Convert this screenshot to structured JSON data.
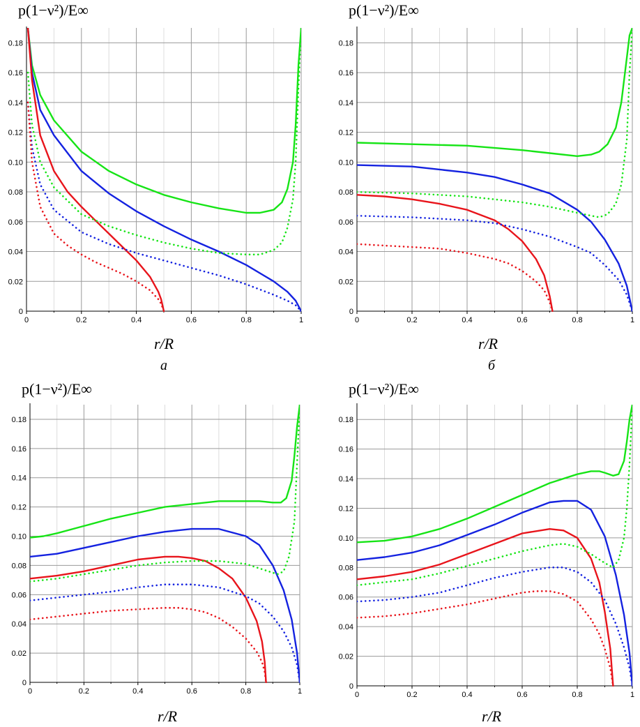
{
  "colors": {
    "red": "#e8141b",
    "blue": "#1422e0",
    "green": "#16e416"
  },
  "chart_data": [
    {
      "type": "line",
      "panel_label": "а",
      "ylabel": "p(1−ν²)/E∞",
      "xlabel": "r/R",
      "xlim": [
        0,
        1
      ],
      "ylim": [
        0,
        0.19
      ],
      "x_ticks": [
        "0",
        "0.2",
        "0.4",
        "0.6",
        "0.8",
        "1"
      ],
      "y_ticks": [
        "0",
        "0.02",
        "0.04",
        "0.06",
        "0.08",
        "0.10",
        "0.12",
        "0.14",
        "0.16",
        "0.18"
      ],
      "grid": true,
      "series": [
        {
          "color": "green",
          "style": "solid",
          "x": [
            0.005,
            0.02,
            0.05,
            0.1,
            0.2,
            0.3,
            0.4,
            0.5,
            0.6,
            0.7,
            0.8,
            0.85,
            0.9,
            0.93,
            0.95,
            0.97,
            0.98,
            0.99,
            1.0
          ],
          "y": [
            0.19,
            0.165,
            0.145,
            0.128,
            0.107,
            0.094,
            0.085,
            0.078,
            0.073,
            0.069,
            0.066,
            0.066,
            0.068,
            0.073,
            0.082,
            0.1,
            0.125,
            0.165,
            0.19
          ]
        },
        {
          "color": "blue",
          "style": "solid",
          "x": [
            0.005,
            0.02,
            0.05,
            0.1,
            0.2,
            0.3,
            0.4,
            0.5,
            0.6,
            0.7,
            0.8,
            0.9,
            0.95,
            0.98,
            1.0
          ],
          "y": [
            0.19,
            0.16,
            0.135,
            0.118,
            0.094,
            0.079,
            0.067,
            0.057,
            0.048,
            0.04,
            0.031,
            0.02,
            0.013,
            0.007,
            0.0
          ]
        },
        {
          "color": "red",
          "style": "solid",
          "x": [
            0.005,
            0.02,
            0.05,
            0.1,
            0.15,
            0.2,
            0.25,
            0.3,
            0.35,
            0.4,
            0.45,
            0.48,
            0.49,
            0.5
          ],
          "y": [
            0.19,
            0.155,
            0.118,
            0.094,
            0.08,
            0.07,
            0.061,
            0.052,
            0.043,
            0.034,
            0.023,
            0.013,
            0.008,
            0.0
          ]
        },
        {
          "color": "green",
          "style": "dotted",
          "x": [
            0.005,
            0.02,
            0.05,
            0.1,
            0.2,
            0.3,
            0.4,
            0.5,
            0.6,
            0.7,
            0.8,
            0.85,
            0.9,
            0.93,
            0.95,
            0.97,
            0.98,
            0.99,
            1.0
          ],
          "y": [
            0.16,
            0.125,
            0.1,
            0.083,
            0.065,
            0.057,
            0.051,
            0.046,
            0.042,
            0.039,
            0.038,
            0.038,
            0.041,
            0.046,
            0.056,
            0.075,
            0.1,
            0.15,
            0.19
          ]
        },
        {
          "color": "blue",
          "style": "dotted",
          "x": [
            0.005,
            0.02,
            0.05,
            0.1,
            0.2,
            0.3,
            0.4,
            0.5,
            0.6,
            0.7,
            0.8,
            0.9,
            0.95,
            0.98,
            1.0
          ],
          "y": [
            0.14,
            0.11,
            0.085,
            0.068,
            0.053,
            0.045,
            0.039,
            0.034,
            0.029,
            0.024,
            0.018,
            0.011,
            0.007,
            0.004,
            0.0
          ]
        },
        {
          "color": "red",
          "style": "dotted",
          "x": [
            0.005,
            0.02,
            0.05,
            0.1,
            0.15,
            0.2,
            0.25,
            0.3,
            0.35,
            0.4,
            0.45,
            0.48,
            0.49,
            0.5
          ],
          "y": [
            0.14,
            0.1,
            0.07,
            0.052,
            0.044,
            0.038,
            0.033,
            0.029,
            0.025,
            0.02,
            0.014,
            0.008,
            0.005,
            0.0
          ]
        }
      ]
    },
    {
      "type": "line",
      "panel_label": "б",
      "ylabel": "p(1−ν²)/E∞",
      "xlabel": "r/R",
      "xlim": [
        0,
        1
      ],
      "ylim": [
        0,
        0.19
      ],
      "x_ticks": [
        "0",
        "0.2",
        "0.4",
        "0.6",
        "0.8",
        "1"
      ],
      "y_ticks": [
        "0",
        "0.02",
        "0.04",
        "0.06",
        "0.08",
        "0.10",
        "0.12",
        "0.14",
        "0.16",
        "0.18"
      ],
      "grid": true,
      "series": [
        {
          "color": "green",
          "style": "solid",
          "x": [
            0,
            0.2,
            0.4,
            0.6,
            0.7,
            0.8,
            0.85,
            0.88,
            0.91,
            0.94,
            0.96,
            0.98,
            0.99,
            1.0
          ],
          "y": [
            0.113,
            0.112,
            0.111,
            0.108,
            0.106,
            0.104,
            0.105,
            0.107,
            0.112,
            0.123,
            0.14,
            0.17,
            0.185,
            0.19
          ]
        },
        {
          "color": "blue",
          "style": "solid",
          "x": [
            0,
            0.2,
            0.4,
            0.5,
            0.6,
            0.7,
            0.8,
            0.85,
            0.9,
            0.95,
            0.98,
            1.0
          ],
          "y": [
            0.098,
            0.097,
            0.093,
            0.09,
            0.085,
            0.079,
            0.068,
            0.06,
            0.048,
            0.032,
            0.017,
            0.0
          ]
        },
        {
          "color": "red",
          "style": "solid",
          "x": [
            0,
            0.1,
            0.2,
            0.3,
            0.4,
            0.5,
            0.55,
            0.6,
            0.65,
            0.68,
            0.7,
            0.71
          ],
          "y": [
            0.078,
            0.077,
            0.075,
            0.072,
            0.068,
            0.061,
            0.055,
            0.047,
            0.035,
            0.024,
            0.01,
            0.0
          ]
        },
        {
          "color": "green",
          "style": "dotted",
          "x": [
            0,
            0.2,
            0.4,
            0.6,
            0.7,
            0.8,
            0.85,
            0.88,
            0.91,
            0.94,
            0.96,
            0.98,
            0.99,
            1.0
          ],
          "y": [
            0.08,
            0.079,
            0.077,
            0.073,
            0.07,
            0.066,
            0.064,
            0.063,
            0.065,
            0.072,
            0.085,
            0.115,
            0.16,
            0.19
          ]
        },
        {
          "color": "blue",
          "style": "dotted",
          "x": [
            0,
            0.2,
            0.4,
            0.5,
            0.6,
            0.7,
            0.8,
            0.85,
            0.9,
            0.95,
            0.98,
            1.0
          ],
          "y": [
            0.064,
            0.063,
            0.061,
            0.059,
            0.055,
            0.05,
            0.043,
            0.039,
            0.031,
            0.021,
            0.011,
            0.0
          ]
        },
        {
          "color": "red",
          "style": "dotted",
          "x": [
            0,
            0.1,
            0.2,
            0.3,
            0.4,
            0.5,
            0.55,
            0.6,
            0.65,
            0.68,
            0.7,
            0.71
          ],
          "y": [
            0.045,
            0.044,
            0.043,
            0.042,
            0.039,
            0.035,
            0.032,
            0.027,
            0.02,
            0.014,
            0.006,
            0.0
          ]
        }
      ]
    },
    {
      "type": "line",
      "panel_label": "",
      "ylabel": "p(1−ν²)/E∞",
      "xlabel": "r/R",
      "xlim": [
        0,
        1
      ],
      "ylim": [
        0,
        0.19
      ],
      "x_ticks": [
        "0",
        "0.2",
        "0.4",
        "0.6",
        "0.8",
        "1"
      ],
      "y_ticks": [
        "0",
        "0.02",
        "0.04",
        "0.06",
        "0.08",
        "0.10",
        "0.12",
        "0.14",
        "0.16",
        "0.18"
      ],
      "grid": true,
      "series": [
        {
          "color": "green",
          "style": "solid",
          "x": [
            0,
            0.05,
            0.1,
            0.2,
            0.3,
            0.4,
            0.5,
            0.6,
            0.7,
            0.8,
            0.85,
            0.9,
            0.93,
            0.95,
            0.97,
            0.98,
            0.99,
            1.0
          ],
          "y": [
            0.099,
            0.1,
            0.102,
            0.107,
            0.112,
            0.116,
            0.12,
            0.122,
            0.124,
            0.124,
            0.124,
            0.123,
            0.123,
            0.126,
            0.138,
            0.155,
            0.175,
            0.19
          ]
        },
        {
          "color": "blue",
          "style": "solid",
          "x": [
            0,
            0.1,
            0.2,
            0.3,
            0.4,
            0.5,
            0.6,
            0.7,
            0.8,
            0.85,
            0.9,
            0.94,
            0.97,
            0.99,
            1.0
          ],
          "y": [
            0.086,
            0.088,
            0.092,
            0.096,
            0.1,
            0.103,
            0.105,
            0.105,
            0.1,
            0.094,
            0.08,
            0.063,
            0.043,
            0.02,
            0.0
          ]
        },
        {
          "color": "red",
          "style": "solid",
          "x": [
            0,
            0.1,
            0.2,
            0.3,
            0.4,
            0.5,
            0.55,
            0.6,
            0.65,
            0.7,
            0.75,
            0.8,
            0.84,
            0.86,
            0.87,
            0.875
          ],
          "y": [
            0.071,
            0.073,
            0.076,
            0.08,
            0.084,
            0.086,
            0.086,
            0.085,
            0.083,
            0.078,
            0.071,
            0.058,
            0.042,
            0.028,
            0.014,
            0.0
          ]
        },
        {
          "color": "green",
          "style": "dotted",
          "x": [
            0,
            0.1,
            0.2,
            0.3,
            0.4,
            0.5,
            0.6,
            0.7,
            0.8,
            0.85,
            0.9,
            0.92,
            0.94,
            0.96,
            0.98,
            0.99,
            1.0
          ],
          "y": [
            0.069,
            0.071,
            0.074,
            0.077,
            0.08,
            0.082,
            0.083,
            0.083,
            0.081,
            0.078,
            0.075,
            0.074,
            0.076,
            0.086,
            0.11,
            0.15,
            0.19
          ]
        },
        {
          "color": "blue",
          "style": "dotted",
          "x": [
            0,
            0.1,
            0.2,
            0.3,
            0.4,
            0.5,
            0.6,
            0.7,
            0.8,
            0.85,
            0.9,
            0.94,
            0.97,
            0.99,
            1.0
          ],
          "y": [
            0.056,
            0.058,
            0.06,
            0.062,
            0.065,
            0.067,
            0.067,
            0.065,
            0.059,
            0.054,
            0.045,
            0.035,
            0.024,
            0.012,
            0.0
          ]
        },
        {
          "color": "red",
          "style": "dotted",
          "x": [
            0,
            0.1,
            0.2,
            0.3,
            0.4,
            0.5,
            0.55,
            0.6,
            0.65,
            0.7,
            0.75,
            0.8,
            0.84,
            0.86,
            0.87,
            0.875
          ],
          "y": [
            0.043,
            0.045,
            0.047,
            0.049,
            0.05,
            0.051,
            0.051,
            0.05,
            0.048,
            0.044,
            0.038,
            0.03,
            0.021,
            0.014,
            0.007,
            0.0
          ]
        }
      ]
    },
    {
      "type": "line",
      "panel_label": "",
      "ylabel": "p(1−ν²)/E∞",
      "xlabel": "r/R",
      "xlim": [
        0,
        1
      ],
      "ylim": [
        0,
        0.19
      ],
      "x_ticks": [
        "0",
        "0.2",
        "0.4",
        "0.6",
        "0.8",
        "1"
      ],
      "y_ticks": [
        "0",
        "0.02",
        "0.04",
        "0.06",
        "0.08",
        "0.10",
        "0.12",
        "0.14",
        "0.16",
        "0.18"
      ],
      "grid": true,
      "series": [
        {
          "color": "green",
          "style": "solid",
          "x": [
            0,
            0.1,
            0.2,
            0.3,
            0.4,
            0.5,
            0.6,
            0.7,
            0.8,
            0.85,
            0.88,
            0.9,
            0.93,
            0.95,
            0.97,
            0.98,
            0.99,
            1.0
          ],
          "y": [
            0.097,
            0.098,
            0.101,
            0.106,
            0.113,
            0.121,
            0.129,
            0.137,
            0.143,
            0.145,
            0.145,
            0.144,
            0.142,
            0.143,
            0.152,
            0.165,
            0.18,
            0.19
          ]
        },
        {
          "color": "blue",
          "style": "solid",
          "x": [
            0,
            0.1,
            0.2,
            0.3,
            0.4,
            0.5,
            0.6,
            0.7,
            0.75,
            0.8,
            0.85,
            0.9,
            0.94,
            0.97,
            0.99,
            1.0
          ],
          "y": [
            0.085,
            0.087,
            0.09,
            0.095,
            0.102,
            0.109,
            0.117,
            0.124,
            0.125,
            0.125,
            0.119,
            0.101,
            0.075,
            0.048,
            0.022,
            0.0
          ]
        },
        {
          "color": "red",
          "style": "solid",
          "x": [
            0,
            0.1,
            0.2,
            0.3,
            0.4,
            0.5,
            0.6,
            0.7,
            0.75,
            0.8,
            0.85,
            0.88,
            0.9,
            0.92,
            0.93
          ],
          "y": [
            0.072,
            0.074,
            0.077,
            0.082,
            0.089,
            0.096,
            0.103,
            0.106,
            0.105,
            0.1,
            0.086,
            0.07,
            0.05,
            0.025,
            0.0
          ]
        },
        {
          "color": "green",
          "style": "dotted",
          "x": [
            0,
            0.1,
            0.2,
            0.3,
            0.4,
            0.5,
            0.6,
            0.7,
            0.75,
            0.8,
            0.85,
            0.9,
            0.93,
            0.95,
            0.97,
            0.98,
            0.99,
            1.0
          ],
          "y": [
            0.068,
            0.07,
            0.072,
            0.076,
            0.081,
            0.086,
            0.091,
            0.095,
            0.096,
            0.094,
            0.089,
            0.083,
            0.08,
            0.085,
            0.1,
            0.12,
            0.15,
            0.19
          ]
        },
        {
          "color": "blue",
          "style": "dotted",
          "x": [
            0,
            0.1,
            0.2,
            0.3,
            0.4,
            0.5,
            0.6,
            0.7,
            0.75,
            0.8,
            0.85,
            0.9,
            0.94,
            0.97,
            0.99,
            1.0
          ],
          "y": [
            0.057,
            0.058,
            0.06,
            0.063,
            0.068,
            0.073,
            0.077,
            0.08,
            0.08,
            0.077,
            0.07,
            0.058,
            0.042,
            0.026,
            0.012,
            0.0
          ]
        },
        {
          "color": "red",
          "style": "dotted",
          "x": [
            0,
            0.1,
            0.2,
            0.3,
            0.4,
            0.5,
            0.6,
            0.65,
            0.7,
            0.75,
            0.8,
            0.85,
            0.88,
            0.9,
            0.92,
            0.93
          ],
          "y": [
            0.046,
            0.047,
            0.049,
            0.052,
            0.055,
            0.059,
            0.063,
            0.064,
            0.064,
            0.062,
            0.057,
            0.045,
            0.035,
            0.025,
            0.012,
            0.0
          ]
        }
      ]
    }
  ]
}
